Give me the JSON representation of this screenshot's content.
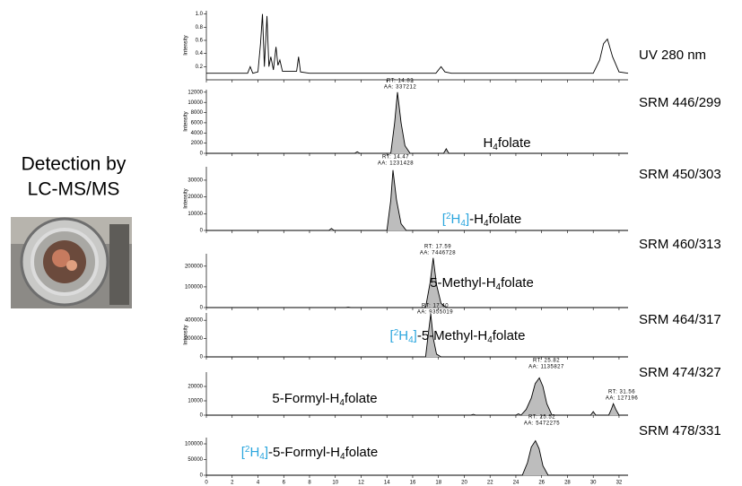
{
  "side_text": [
    "Detection by",
    "LC-MS/MS"
  ],
  "chart_data": [
    {
      "type": "line",
      "label": "UV 280 nm",
      "y_title": "Intensity",
      "color": "#000",
      "x": [
        0,
        3.2,
        3.4,
        3.6,
        4.0,
        4.2,
        4.35,
        4.5,
        4.7,
        4.85,
        5.0,
        5.2,
        5.4,
        5.55,
        5.7,
        5.9,
        6.1,
        7.0,
        7.15,
        7.3,
        8,
        17.8,
        18.2,
        18.5,
        19,
        30.0,
        30.5,
        30.8,
        31.1,
        31.5,
        32,
        32.7
      ],
      "values": [
        0.1,
        0.1,
        0.2,
        0.1,
        0.12,
        0.55,
        1.0,
        0.2,
        0.97,
        0.2,
        0.35,
        0.15,
        0.5,
        0.22,
        0.3,
        0.13,
        0.13,
        0.13,
        0.35,
        0.12,
        0.1,
        0.1,
        0.2,
        0.12,
        0.1,
        0.1,
        0.3,
        0.55,
        0.62,
        0.35,
        0.12,
        0.1
      ],
      "xlim": [
        0,
        32.7
      ],
      "ylim": [
        0,
        1.05
      ],
      "yticks": [
        0.2,
        0.4,
        0.6,
        0.8,
        {
          "value": 1,
          "label": "1.0"
        }
      ]
    },
    {
      "type": "line",
      "label": "SRM 446/299",
      "y_title": "Intensity",
      "color": "#000",
      "fill": "#bdbdbd",
      "compound": [
        "H",
        "4",
        "folate"
      ],
      "annotations": [
        [
          "RT: 14.82",
          "AA: 337212"
        ]
      ],
      "x": [
        0,
        11.5,
        11.7,
        11.9,
        14.3,
        14.6,
        14.82,
        15.1,
        15.4,
        15.8,
        18.4,
        18.6,
        18.8,
        32.7
      ],
      "values": [
        0,
        0,
        300,
        0,
        0,
        6000,
        12000,
        6000,
        1500,
        0,
        0,
        900,
        0,
        0
      ],
      "xlim": [
        0,
        32.7
      ],
      "ylim": [
        0,
        12500
      ],
      "yticks": [
        0,
        2000,
        4000,
        6000,
        8000,
        10000,
        12000
      ]
    },
    {
      "type": "line",
      "label": "SRM 450/303",
      "y_title": "Intensity",
      "color": "#000",
      "fill": "#bdbdbd",
      "compound": [
        "[",
        "2",
        "H",
        "4",
        "]",
        "-H",
        "4",
        "folate"
      ],
      "annotations": [
        [
          "RT: 14.47",
          "AA: 1231428"
        ]
      ],
      "x": [
        0,
        9.5,
        9.7,
        9.9,
        14.0,
        14.3,
        14.47,
        14.75,
        15.1,
        15.5,
        32.7
      ],
      "values": [
        0,
        0,
        1200,
        0,
        0,
        18000,
        36000,
        18000,
        4000,
        0,
        0
      ],
      "xlim": [
        0,
        32.7
      ],
      "ylim": [
        0,
        38000
      ],
      "yticks": [
        0,
        10000,
        20000,
        30000
      ]
    },
    {
      "type": "line",
      "label": "SRM 460/313",
      "color": "#000",
      "fill": "#bdbdbd",
      "compound": [
        "5-Methyl-H",
        "4",
        "folate"
      ],
      "annotations": [
        [
          "RT: 17.59",
          "AA: 7446728"
        ]
      ],
      "x": [
        0,
        10.8,
        11.0,
        11.2,
        17.0,
        17.35,
        17.59,
        17.85,
        18.2,
        18.6,
        32.7
      ],
      "values": [
        0,
        0,
        2000,
        0,
        0,
        120000,
        240000,
        110000,
        20000,
        0,
        0
      ],
      "xlim": [
        0,
        32.7
      ],
      "ylim": [
        0,
        260000
      ],
      "yticks": [
        0,
        100000,
        200000
      ]
    },
    {
      "type": "line",
      "label": "SRM 464/317",
      "y_title": "Intensity",
      "color": "#000",
      "fill": "#bdbdbd",
      "compound": [
        "[",
        "2",
        "H",
        "4",
        "]",
        "-5-Methyl-H",
        "4",
        "folate"
      ],
      "annotations": [
        [
          "RT: 17.40",
          "AA: 9355019"
        ]
      ],
      "x": [
        0,
        17.0,
        17.2,
        17.4,
        17.6,
        17.85,
        18.2,
        32.7
      ],
      "values": [
        0,
        0,
        240000,
        470000,
        200000,
        30000,
        0,
        0
      ],
      "xlim": [
        0,
        32.7
      ],
      "ylim": [
        0,
        480000
      ],
      "yticks": [
        0,
        200000,
        400000
      ]
    },
    {
      "type": "line",
      "label": "SRM 474/327",
      "color": "#000",
      "fill": "#bdbdbd",
      "compound": [
        "5-Formyl-H",
        "4",
        "folate"
      ],
      "annotations": [
        [
          "RT: 25.82",
          "AA: 1135827"
        ],
        [
          "RT: 31.56",
          "AA: 127196"
        ]
      ],
      "x": [
        0,
        20.5,
        20.7,
        20.9,
        24.0,
        24.2,
        24.4,
        24.8,
        25.2,
        25.5,
        25.82,
        26.1,
        26.4,
        26.8,
        29.8,
        30.0,
        30.2,
        31.2,
        31.4,
        31.56,
        31.75,
        32.0,
        32.7
      ],
      "values": [
        0,
        0,
        600,
        0,
        0,
        900,
        0,
        4000,
        12000,
        22000,
        26000,
        20000,
        8000,
        0,
        0,
        2500,
        0,
        0,
        4000,
        8000,
        4000,
        0,
        0
      ],
      "xlim": [
        0,
        32.7
      ],
      "ylim": [
        0,
        30000
      ],
      "yticks": [
        0,
        10000,
        20000
      ]
    },
    {
      "type": "line",
      "label": "SRM 478/331",
      "color": "#000",
      "fill": "#bdbdbd",
      "compound": [
        "[",
        "2",
        "H",
        "4",
        "]",
        "-5-Formyl-H",
        "4",
        "folate"
      ],
      "annotations": [
        [
          "RT: 25.52",
          "AA: 5472275"
        ]
      ],
      "x": [
        0,
        24.5,
        24.9,
        25.2,
        25.52,
        25.8,
        26.1,
        26.5,
        32.7
      ],
      "values": [
        0,
        0,
        40000,
        90000,
        110000,
        85000,
        30000,
        0,
        0
      ],
      "xlim": [
        0,
        32.7
      ],
      "ylim": [
        0,
        120000
      ],
      "yticks": [
        0,
        50000,
        100000
      ],
      "xticks": [
        0,
        2,
        4,
        6,
        8,
        10,
        12,
        14,
        16,
        18,
        20,
        22,
        24,
        26,
        28,
        30,
        32
      ]
    }
  ]
}
